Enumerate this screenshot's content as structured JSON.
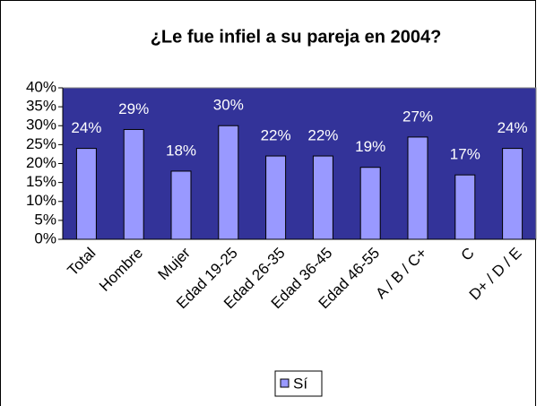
{
  "chart_data": {
    "type": "bar",
    "title": "¿Le fue infiel a su pareja en 2004?",
    "categories": [
      "Total",
      "Hombre",
      "Mujer",
      "Edad 19-25",
      "Edad 26-35",
      "Edad 36-45",
      "Edad 46-55",
      "A / B / C+",
      "C",
      "D+ / D / E"
    ],
    "series": [
      {
        "name": "Sí",
        "color": "#9999ff",
        "values": [
          24,
          29,
          18,
          30,
          22,
          22,
          19,
          27,
          17,
          24
        ],
        "value_labels": [
          "24%",
          "29%",
          "18%",
          "30%",
          "22%",
          "22%",
          "19%",
          "27%",
          "17%",
          "24%"
        ]
      }
    ],
    "ylim": [
      0,
      40
    ],
    "yticks": [
      {
        "value": 0,
        "label": "0%"
      },
      {
        "value": 5,
        "label": "5%"
      },
      {
        "value": 10,
        "label": "10%"
      },
      {
        "value": 15,
        "label": "15%"
      },
      {
        "value": 20,
        "label": "20%"
      },
      {
        "value": 25,
        "label": "25%"
      },
      {
        "value": 30,
        "label": "30%"
      },
      {
        "value": 35,
        "label": "35%"
      },
      {
        "value": 40,
        "label": "40%"
      }
    ],
    "plot_background": "#333399",
    "legend": "bottom"
  }
}
